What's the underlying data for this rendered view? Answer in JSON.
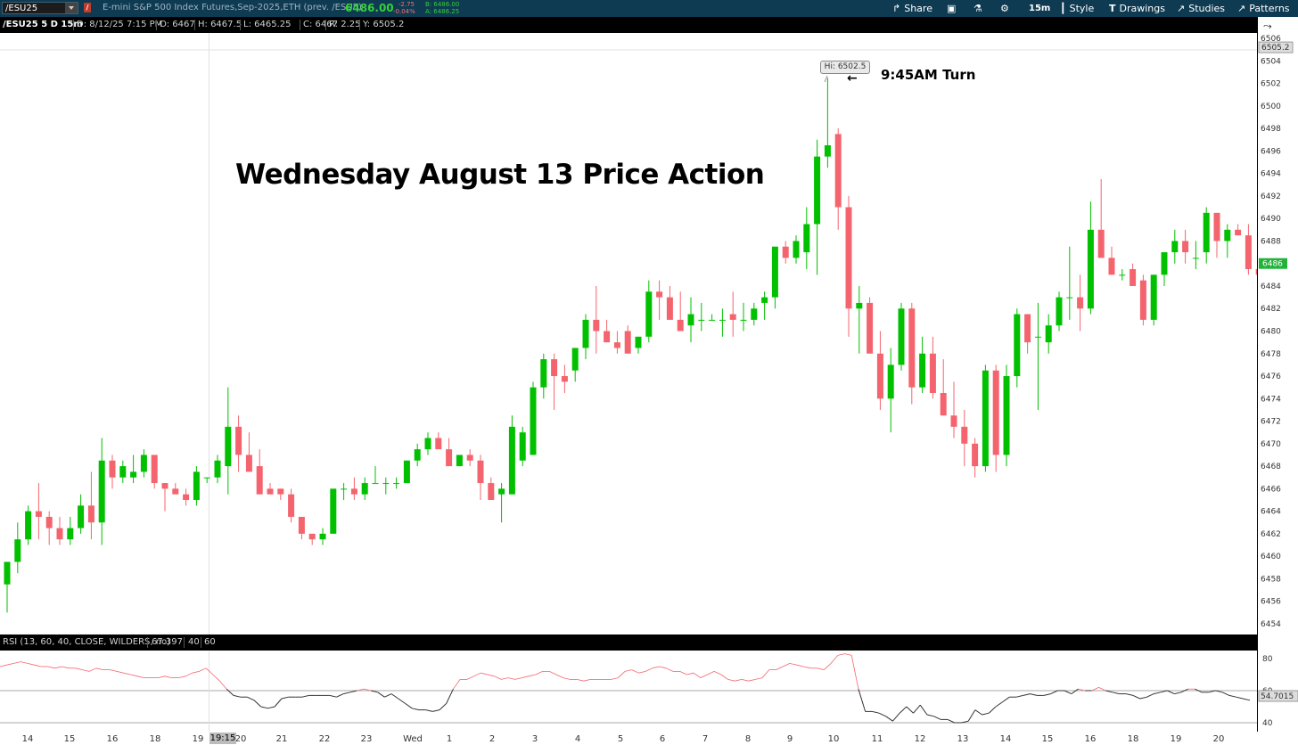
{
  "toolbar": {
    "symbol": "/ESU25",
    "description": "E-mini S&P 500 Index Futures,Sep-2025,ETH (prev. /ESU5)",
    "last": "6486.00",
    "net_change": "-2.75",
    "pct_change": "-0.04%",
    "bid": "B: 6486.00",
    "ask": "A: 6486.25",
    "share": "Share",
    "aggregation": "15m",
    "style": "Style",
    "drawings": "Drawings",
    "studies": "Studies",
    "patterns": "Patterns"
  },
  "info": {
    "title": "/ESU25 5 D 15m",
    "date": "D: 8/12/25 7:15 PM",
    "open": "O: 6467",
    "high": "H: 6467.5",
    "low": "L: 6465.25",
    "close": "C: 6467",
    "range": "R: 2.25",
    "y": "Y: 6505.2"
  },
  "annotations": {
    "title": "Wednesday August 13 Price Action",
    "turn": "9:45AM Turn",
    "hi_label": "Hi: 6502.5"
  },
  "rsi": {
    "label": "RSI (13, 60, 40, CLOSE, WILDERS, no)",
    "value": "67.397",
    "ob": "40",
    "os": "60",
    "axis_labels": [
      "80",
      "60",
      "40"
    ],
    "current": "54.7015"
  },
  "price_axis": {
    "labels": [
      "6506",
      "6504",
      "6502",
      "6500",
      "6498",
      "6496",
      "6494",
      "6492",
      "6490",
      "6488",
      "6486",
      "6484",
      "6482",
      "6480",
      "6478",
      "6476",
      "6474",
      "6472",
      "6470",
      "6468",
      "6466",
      "6464",
      "6462",
      "6460",
      "6458",
      "6456",
      "6454"
    ],
    "cursor": "6505.2",
    "last": "6486"
  },
  "time_axis": {
    "labels": [
      "14",
      "15",
      "16",
      "18",
      "19",
      "20",
      "21",
      "22",
      "23",
      "Wed",
      "1",
      "2",
      "3",
      "4",
      "5",
      "6",
      "7",
      "8",
      "9",
      "10",
      "11",
      "12",
      "13",
      "14",
      "15",
      "16",
      "18",
      "19",
      "20"
    ],
    "cursor": "19:15"
  },
  "colors": {
    "up": "#00c000",
    "down": "#f4646e",
    "toolbar": "#0e3a52",
    "rsi_high": "#f4646e",
    "rsi_mid": "#333333",
    "rsi_low": "#1e88e5"
  },
  "chart_data": {
    "type": "candlestick",
    "ylim": [
      6453.5,
      6506.5
    ],
    "candles": [
      {
        "o": 6457.5,
        "h": 6459.0,
        "l": 6455.0,
        "c": 6459.5
      },
      {
        "o": 6459.5,
        "h": 6463.0,
        "l": 6458.5,
        "c": 6461.5
      },
      {
        "o": 6461.5,
        "h": 6464.5,
        "l": 6461.0,
        "c": 6464.0
      },
      {
        "o": 6464.0,
        "h": 6466.5,
        "l": 6461.5,
        "c": 6463.5
      },
      {
        "o": 6463.5,
        "h": 6464.0,
        "l": 6461.0,
        "c": 6462.5
      },
      {
        "o": 6462.5,
        "h": 6463.5,
        "l": 6461.0,
        "c": 6461.5
      },
      {
        "o": 6461.5,
        "h": 6463.5,
        "l": 6461.0,
        "c": 6462.5
      },
      {
        "o": 6462.5,
        "h": 6465.5,
        "l": 6462.0,
        "c": 6464.5
      },
      {
        "o": 6464.5,
        "h": 6467.5,
        "l": 6461.5,
        "c": 6463.0
      },
      {
        "o": 6463.0,
        "h": 6470.5,
        "l": 6461.0,
        "c": 6468.5
      },
      {
        "o": 6468.5,
        "h": 6469.0,
        "l": 6466.0,
        "c": 6467.0
      },
      {
        "o": 6467.0,
        "h": 6468.5,
        "l": 6466.5,
        "c": 6468.0
      },
      {
        "o": 6467.0,
        "h": 6469.0,
        "l": 6466.5,
        "c": 6467.5
      },
      {
        "o": 6467.5,
        "h": 6469.5,
        "l": 6467.0,
        "c": 6469.0
      },
      {
        "o": 6469.0,
        "h": 6469.0,
        "l": 6466.0,
        "c": 6466.5
      },
      {
        "o": 6466.5,
        "h": 6466.5,
        "l": 6464.0,
        "c": 6466.0
      },
      {
        "o": 6466.0,
        "h": 6466.5,
        "l": 6465.5,
        "c": 6465.5
      },
      {
        "o": 6465.5,
        "h": 6466.0,
        "l": 6464.5,
        "c": 6465.0
      },
      {
        "o": 6465.0,
        "h": 6468.0,
        "l": 6464.5,
        "c": 6467.5
      },
      {
        "o": 6467.0,
        "h": 6467.0,
        "l": 6466.5,
        "c": 6467.0
      },
      {
        "o": 6467.0,
        "h": 6469.0,
        "l": 6466.5,
        "c": 6468.5
      },
      {
        "o": 6468.0,
        "h": 6475.0,
        "l": 6465.5,
        "c": 6471.5
      },
      {
        "o": 6471.5,
        "h": 6472.5,
        "l": 6467.5,
        "c": 6469.0
      },
      {
        "o": 6469.0,
        "h": 6471.0,
        "l": 6467.5,
        "c": 6467.5
      },
      {
        "o": 6468.0,
        "h": 6469.5,
        "l": 6465.5,
        "c": 6465.5
      },
      {
        "o": 6466.0,
        "h": 6466.5,
        "l": 6465.5,
        "c": 6465.5
      },
      {
        "o": 6466.0,
        "h": 6466.0,
        "l": 6465.0,
        "c": 6465.5
      },
      {
        "o": 6465.5,
        "h": 6466.0,
        "l": 6463.0,
        "c": 6463.5
      },
      {
        "o": 6463.5,
        "h": 6463.5,
        "l": 6461.5,
        "c": 6462.0
      },
      {
        "o": 6462.0,
        "h": 6462.0,
        "l": 6461.0,
        "c": 6461.5
      },
      {
        "o": 6461.5,
        "h": 6462.5,
        "l": 6461.0,
        "c": 6462.0
      },
      {
        "o": 6462.0,
        "h": 6466.0,
        "l": 6462.0,
        "c": 6466.0
      },
      {
        "o": 6466.0,
        "h": 6466.5,
        "l": 6465.0,
        "c": 6466.0
      },
      {
        "o": 6466.0,
        "h": 6467.0,
        "l": 6465.0,
        "c": 6465.5
      },
      {
        "o": 6465.5,
        "h": 6467.0,
        "l": 6465.0,
        "c": 6466.5
      },
      {
        "o": 6466.5,
        "h": 6468.0,
        "l": 6466.5,
        "c": 6466.5
      },
      {
        "o": 6466.5,
        "h": 6467.0,
        "l": 6465.5,
        "c": 6466.5
      },
      {
        "o": 6466.5,
        "h": 6467.0,
        "l": 6466.0,
        "c": 6466.5
      },
      {
        "o": 6466.5,
        "h": 6468.5,
        "l": 6466.5,
        "c": 6468.5
      },
      {
        "o": 6468.5,
        "h": 6470.0,
        "l": 6468.0,
        "c": 6469.5
      },
      {
        "o": 6469.5,
        "h": 6471.0,
        "l": 6469.0,
        "c": 6470.5
      },
      {
        "o": 6470.5,
        "h": 6471.0,
        "l": 6470.0,
        "c": 6469.5
      },
      {
        "o": 6469.5,
        "h": 6470.5,
        "l": 6468.0,
        "c": 6468.0
      },
      {
        "o": 6468.0,
        "h": 6469.0,
        "l": 6468.0,
        "c": 6469.0
      },
      {
        "o": 6469.0,
        "h": 6469.5,
        "l": 6468.0,
        "c": 6468.5
      },
      {
        "o": 6468.5,
        "h": 6469.0,
        "l": 6465.0,
        "c": 6466.5
      },
      {
        "o": 6466.5,
        "h": 6467.0,
        "l": 6465.0,
        "c": 6465.0
      },
      {
        "o": 6465.5,
        "h": 6466.5,
        "l": 6463.0,
        "c": 6466.0
      },
      {
        "o": 6465.5,
        "h": 6472.5,
        "l": 6465.5,
        "c": 6471.5
      },
      {
        "o": 6468.5,
        "h": 6471.5,
        "l": 6468.0,
        "c": 6471.0
      },
      {
        "o": 6469.0,
        "h": 6475.5,
        "l": 6469.0,
        "c": 6475.0
      },
      {
        "o": 6475.0,
        "h": 6478.0,
        "l": 6474.0,
        "c": 6477.5
      },
      {
        "o": 6477.5,
        "h": 6478.0,
        "l": 6473.0,
        "c": 6476.0
      },
      {
        "o": 6476.0,
        "h": 6477.0,
        "l": 6474.5,
        "c": 6475.5
      },
      {
        "o": 6476.5,
        "h": 6478.0,
        "l": 6475.5,
        "c": 6478.5
      },
      {
        "o": 6478.5,
        "h": 6481.5,
        "l": 6477.5,
        "c": 6481.0
      },
      {
        "o": 6481.0,
        "h": 6484.0,
        "l": 6478.0,
        "c": 6480.0
      },
      {
        "o": 6480.0,
        "h": 6481.0,
        "l": 6479.0,
        "c": 6479.0
      },
      {
        "o": 6479.0,
        "h": 6480.0,
        "l": 6478.0,
        "c": 6478.5
      },
      {
        "o": 6480.0,
        "h": 6480.5,
        "l": 6478.0,
        "c": 6478.0
      },
      {
        "o": 6478.5,
        "h": 6479.5,
        "l": 6478.0,
        "c": 6479.5
      },
      {
        "o": 6479.5,
        "h": 6484.5,
        "l": 6479.0,
        "c": 6483.5
      },
      {
        "o": 6483.5,
        "h": 6484.5,
        "l": 6481.0,
        "c": 6483.0
      },
      {
        "o": 6483.0,
        "h": 6484.0,
        "l": 6481.0,
        "c": 6481.0
      },
      {
        "o": 6481.0,
        "h": 6483.5,
        "l": 6480.0,
        "c": 6480.0
      },
      {
        "o": 6480.5,
        "h": 6483.0,
        "l": 6479.0,
        "c": 6481.5
      },
      {
        "o": 6481.0,
        "h": 6482.5,
        "l": 6480.0,
        "c": 6481.0
      },
      {
        "o": 6481.0,
        "h": 6481.5,
        "l": 6481.0,
        "c": 6481.0
      },
      {
        "o": 6481.0,
        "h": 6482.0,
        "l": 6479.5,
        "c": 6481.0
      },
      {
        "o": 6481.5,
        "h": 6483.5,
        "l": 6479.5,
        "c": 6481.0
      },
      {
        "o": 6481.0,
        "h": 6482.5,
        "l": 6480.0,
        "c": 6481.0
      },
      {
        "o": 6481.0,
        "h": 6482.5,
        "l": 6480.5,
        "c": 6482.0
      },
      {
        "o": 6482.5,
        "h": 6483.5,
        "l": 6481.0,
        "c": 6483.0
      },
      {
        "o": 6483.0,
        "h": 6487.0,
        "l": 6482.0,
        "c": 6487.5
      },
      {
        "o": 6487.5,
        "h": 6488.0,
        "l": 6486.0,
        "c": 6486.5
      },
      {
        "o": 6486.5,
        "h": 6488.5,
        "l": 6486.0,
        "c": 6488.0
      },
      {
        "o": 6487.0,
        "h": 6491.0,
        "l": 6485.5,
        "c": 6489.5
      },
      {
        "o": 6489.5,
        "h": 6497.0,
        "l": 6485.0,
        "c": 6495.5
      },
      {
        "o": 6495.5,
        "h": 6502.5,
        "l": 6494.5,
        "c": 6496.5
      },
      {
        "o": 6497.5,
        "h": 6498.0,
        "l": 6489.0,
        "c": 6491.0
      },
      {
        "o": 6491.0,
        "h": 6492.0,
        "l": 6479.5,
        "c": 6482.0
      },
      {
        "o": 6482.0,
        "h": 6484.0,
        "l": 6478.0,
        "c": 6482.5
      },
      {
        "o": 6482.5,
        "h": 6483.0,
        "l": 6478.0,
        "c": 6478.0
      },
      {
        "o": 6478.0,
        "h": 6480.0,
        "l": 6473.0,
        "c": 6474.0
      },
      {
        "o": 6474.0,
        "h": 6478.5,
        "l": 6471.0,
        "c": 6477.0
      },
      {
        "o": 6477.0,
        "h": 6482.5,
        "l": 6476.5,
        "c": 6482.0
      },
      {
        "o": 6482.0,
        "h": 6482.5,
        "l": 6473.5,
        "c": 6475.0
      },
      {
        "o": 6475.0,
        "h": 6479.5,
        "l": 6474.5,
        "c": 6478.0
      },
      {
        "o": 6478.0,
        "h": 6479.5,
        "l": 6474.0,
        "c": 6474.5
      },
      {
        "o": 6474.5,
        "h": 6477.5,
        "l": 6472.5,
        "c": 6472.5
      },
      {
        "o": 6472.5,
        "h": 6475.5,
        "l": 6470.5,
        "c": 6471.5
      },
      {
        "o": 6471.5,
        "h": 6473.0,
        "l": 6468.0,
        "c": 6470.0
      },
      {
        "o": 6470.0,
        "h": 6470.5,
        "l": 6467.0,
        "c": 6468.0
      },
      {
        "o": 6468.0,
        "h": 6477.0,
        "l": 6467.5,
        "c": 6476.5
      },
      {
        "o": 6476.5,
        "h": 6477.0,
        "l": 6467.5,
        "c": 6469.0
      },
      {
        "o": 6469.0,
        "h": 6477.0,
        "l": 6468.0,
        "c": 6476.0
      },
      {
        "o": 6476.0,
        "h": 6482.0,
        "l": 6475.0,
        "c": 6481.5
      },
      {
        "o": 6481.5,
        "h": 6481.5,
        "l": 6478.0,
        "c": 6479.0
      },
      {
        "o": 6479.5,
        "h": 6482.5,
        "l": 6473.0,
        "c": 6479.5
      },
      {
        "o": 6479.0,
        "h": 6481.5,
        "l": 6478.0,
        "c": 6480.5
      },
      {
        "o": 6480.5,
        "h": 6483.5,
        "l": 6480.0,
        "c": 6483.0
      },
      {
        "o": 6483.0,
        "h": 6487.5,
        "l": 6481.0,
        "c": 6483.0
      },
      {
        "o": 6483.0,
        "h": 6485.0,
        "l": 6480.0,
        "c": 6482.0
      },
      {
        "o": 6482.0,
        "h": 6491.5,
        "l": 6481.5,
        "c": 6489.0
      },
      {
        "o": 6489.0,
        "h": 6493.5,
        "l": 6486.5,
        "c": 6486.5
      },
      {
        "o": 6486.5,
        "h": 6487.5,
        "l": 6485.0,
        "c": 6485.0
      },
      {
        "o": 6485.0,
        "h": 6485.5,
        "l": 6484.5,
        "c": 6485.0
      },
      {
        "o": 6485.5,
        "h": 6486.0,
        "l": 6484.0,
        "c": 6484.0
      },
      {
        "o": 6484.5,
        "h": 6485.0,
        "l": 6480.5,
        "c": 6481.0
      },
      {
        "o": 6481.0,
        "h": 6485.0,
        "l": 6480.5,
        "c": 6485.0
      },
      {
        "o": 6485.0,
        "h": 6486.5,
        "l": 6484.0,
        "c": 6487.0
      },
      {
        "o": 6487.0,
        "h": 6489.0,
        "l": 6486.0,
        "c": 6488.0
      },
      {
        "o": 6488.0,
        "h": 6489.0,
        "l": 6486.0,
        "c": 6487.0
      },
      {
        "o": 6486.5,
        "h": 6488.0,
        "l": 6485.5,
        "c": 6486.5
      },
      {
        "o": 6487.0,
        "h": 6491.0,
        "l": 6486.0,
        "c": 6490.5
      },
      {
        "o": 6490.5,
        "h": 6490.5,
        "l": 6486.5,
        "c": 6488.0
      },
      {
        "o": 6488.0,
        "h": 6489.5,
        "l": 6486.5,
        "c": 6489.0
      },
      {
        "o": 6489.0,
        "h": 6489.5,
        "l": 6488.5,
        "c": 6488.5
      },
      {
        "o": 6488.5,
        "h": 6489.5,
        "l": 6485.0,
        "c": 6485.5
      },
      {
        "o": 6485.5,
        "h": 6486.0,
        "l": 6484.5,
        "c": 6485.0
      }
    ],
    "rsi": [
      75,
      76,
      77,
      78,
      77,
      76,
      75,
      75,
      74,
      75,
      74,
      74,
      73,
      72,
      74,
      73,
      73,
      72,
      71,
      70,
      69,
      68,
      68,
      68,
      69,
      68,
      68,
      69,
      71,
      72,
      74,
      70,
      66,
      61,
      57,
      56,
      56,
      54,
      50,
      49,
      50,
      55,
      56,
      56,
      56,
      57,
      57,
      57,
      57,
      56,
      58,
      59,
      60,
      61,
      60,
      59,
      56,
      58,
      55,
      52,
      49,
      48,
      48,
      47,
      48,
      52,
      61,
      67,
      67,
      69,
      71,
      70,
      69,
      67,
      68,
      67,
      68,
      69,
      70,
      72,
      72,
      70,
      68,
      67,
      67,
      66,
      67,
      67,
      67,
      67,
      68,
      72,
      73,
      71,
      72,
      74,
      75,
      74,
      72,
      72,
      70,
      71,
      68,
      70,
      72,
      70,
      67,
      66,
      67,
      66,
      67,
      68,
      73,
      73,
      75,
      77,
      76,
      75,
      74,
      74,
      73,
      77,
      82,
      83,
      82,
      61,
      47,
      47,
      46,
      44,
      41,
      46,
      50,
      46,
      51,
      45,
      44,
      42,
      42,
      40,
      40,
      41,
      48,
      45,
      46,
      50,
      53,
      56,
      56,
      57,
      58,
      57,
      57,
      58,
      60,
      60,
      58,
      61,
      60,
      60,
      62,
      60,
      59,
      58,
      58,
      57,
      55,
      56,
      58,
      59,
      60,
      58,
      59,
      61,
      61,
      59,
      59,
      60,
      59,
      57,
      56,
      55,
      54
    ]
  }
}
